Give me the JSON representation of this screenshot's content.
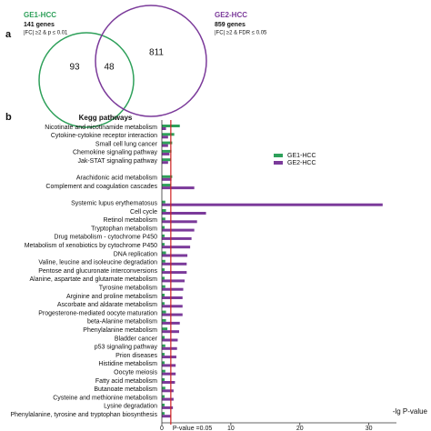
{
  "chart_data": [
    {
      "type": "venn",
      "panel_label": "a",
      "sets": [
        {
          "name": "GE1-HCC",
          "genes": "141 genes",
          "criteria": "|FC| ≥2 & p ≤ 0.01",
          "color": "#2ea05a"
        },
        {
          "name": "GE2-HCC",
          "genes": "859 genes",
          "criteria": "|FC| ≥2 & FDR ≤ 0.05",
          "color": "#7b3a9a"
        }
      ],
      "regions": [
        93,
        48,
        811
      ]
    },
    {
      "type": "hbar",
      "panel_label": "b",
      "title": "Kegg pathways",
      "categories": [
        "Nicotinate and nicotinamide metabolism",
        "Cytokine-cytokine receptor interaction",
        "Small cell lung cancer",
        "Chemokine signaling pathway",
        "Jak-STAT signaling pathway",
        null,
        "Arachidonic acid metabolism",
        "Complement and coagulation cascades",
        null,
        "Systemic lupus erythematosus",
        "Cell cycle",
        "Retinol metabolism",
        "Tryptophan metabolism",
        "Drug metabolism - cytochrome P450",
        "Metabolism of xenobiotics by cytochrome P450",
        "DNA replication",
        "Valine, leucine and isoleucine degradation",
        "Pentose and glucuronate interconversions",
        "Alanine, aspartate and glutamate metabolism",
        "Tyrosine metabolism",
        "Arginine and proline metabolism",
        "Ascorbate and aldarate metabolism",
        "Progesterone-mediated oocyte maturation",
        "beta-Alanine metabolism",
        "Phenylalanine metabolism",
        "Bladder cancer",
        "p53 signaling pathway",
        "Prion diseases",
        "Histidine metabolism",
        "Oocyte meiosis",
        "Fatty acid metabolism",
        "Butanoate metabolism",
        "Cysteine and methionine metabolism",
        "Lysine degradation",
        "Phenylalanine, tyrosine and tryptophan biosynthesis"
      ],
      "series": [
        {
          "name": "GE1-HCC",
          "color": "#2ea05a",
          "values": [
            2.6,
            1.8,
            1.5,
            1.4,
            1.3,
            null,
            1.5,
            1.3,
            null,
            0.5,
            0.6,
            0.5,
            0.4,
            0.4,
            0.4,
            0.6,
            0.5,
            0.4,
            0.4,
            0.5,
            0.4,
            0.4,
            0.6,
            0.6,
            0.8,
            0.4,
            0.5,
            0.4,
            0.4,
            0.5,
            0.4,
            0.5,
            0.4,
            0.4,
            0.4
          ]
        },
        {
          "name": "GE2-HCC",
          "color": "#7b3a9a",
          "values": [
            0.6,
            0.9,
            0.9,
            1.1,
            0.9,
            null,
            1.4,
            4.7,
            null,
            32,
            6.4,
            5.1,
            4.7,
            4.3,
            4.1,
            3.7,
            3.6,
            3.6,
            3.3,
            3.1,
            3.0,
            3.0,
            3.0,
            2.6,
            2.5,
            2.3,
            2.2,
            2.1,
            2.0,
            2.0,
            1.9,
            1.7,
            1.7,
            1.6,
            1.3
          ]
        }
      ],
      "xlim": [
        0,
        34
      ],
      "xticks": [
        0,
        10,
        20,
        30
      ],
      "x_label": "-lg P-value",
      "annotation": {
        "text": "P-value =0.05",
        "value": 1.3,
        "color": "#d02020"
      },
      "legend": "right"
    }
  ]
}
